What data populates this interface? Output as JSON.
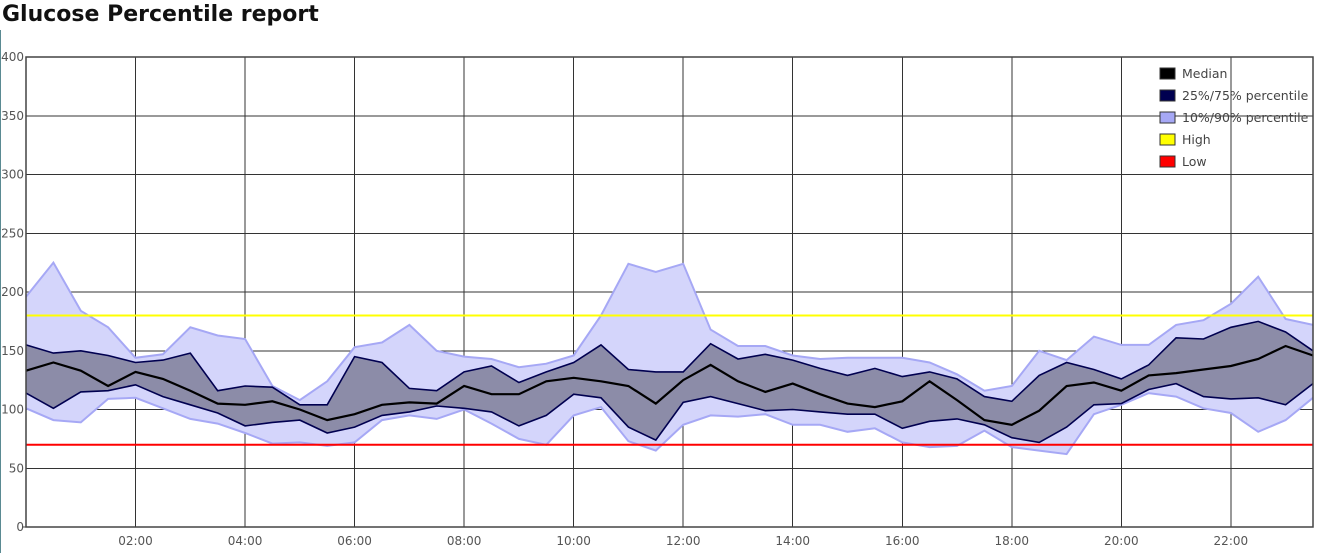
{
  "page": {
    "title": "Glucose Percentile report"
  },
  "chart_data": {
    "type": "area",
    "xlim": [
      0,
      23.5
    ],
    "ylim": [
      0,
      400
    ],
    "yticks": [
      0,
      50,
      100,
      150,
      200,
      250,
      300,
      350,
      400
    ],
    "xticks": [
      2,
      4,
      6,
      8,
      10,
      12,
      14,
      16,
      18,
      20,
      22
    ],
    "xtick_labels": [
      "02:00",
      "04:00",
      "06:00",
      "08:00",
      "10:00",
      "12:00",
      "14:00",
      "16:00",
      "18:00",
      "20:00",
      "22:00"
    ],
    "grid": true,
    "legend_position": "top-right",
    "x": [
      0,
      0.5,
      1,
      1.5,
      2,
      2.5,
      3,
      3.5,
      4,
      4.5,
      5,
      5.5,
      6,
      6.5,
      7,
      7.5,
      8,
      8.5,
      9,
      9.5,
      10,
      10.5,
      11,
      11.5,
      12,
      12.5,
      13,
      13.5,
      14,
      14.5,
      15,
      15.5,
      16,
      16.5,
      17,
      17.5,
      18,
      18.5,
      19,
      19.5,
      20,
      20.5,
      21,
      21.5,
      22,
      22.5,
      23,
      23.5
    ],
    "series": [
      {
        "name": "Median",
        "color": "#000000",
        "values": [
          133,
          140,
          133,
          120,
          132,
          126,
          116,
          105,
          104,
          107,
          100,
          91,
          96,
          104,
          106,
          105,
          120,
          113,
          113,
          124,
          127,
          124,
          120,
          105,
          125,
          138,
          124,
          115,
          122,
          113,
          105,
          102,
          107,
          124,
          108,
          91,
          87,
          99,
          120,
          123,
          116,
          129,
          131,
          134,
          137,
          143,
          154,
          146
        ]
      },
      {
        "name": "25%/75% percentile",
        "color": "#000050",
        "upper": [
          155,
          148,
          150,
          146,
          140,
          142,
          148,
          116,
          120,
          119,
          104,
          104,
          145,
          140,
          118,
          116,
          132,
          137,
          123,
          132,
          140,
          155,
          134,
          132,
          132,
          156,
          143,
          147,
          142,
          135,
          129,
          135,
          128,
          132,
          126,
          111,
          107,
          129,
          140,
          134,
          126,
          138,
          161,
          160,
          170,
          175,
          166,
          150
        ],
        "lower": [
          114,
          101,
          115,
          116,
          121,
          111,
          104,
          97,
          86,
          89,
          91,
          80,
          85,
          95,
          98,
          103,
          101,
          98,
          86,
          95,
          113,
          110,
          85,
          74,
          106,
          111,
          105,
          99,
          100,
          98,
          96,
          96,
          84,
          90,
          92,
          87,
          76,
          72,
          85,
          104,
          105,
          117,
          122,
          111,
          109,
          110,
          104,
          122
        ]
      },
      {
        "name": "10%/90% percentile",
        "color": "#a6a8f5",
        "upper": [
          196,
          225,
          184,
          170,
          144,
          147,
          170,
          163,
          160,
          120,
          108,
          124,
          153,
          157,
          172,
          150,
          145,
          143,
          136,
          139,
          146,
          180,
          224,
          217,
          224,
          168,
          154,
          154,
          146,
          143,
          144,
          144,
          144,
          140,
          130,
          116,
          120,
          150,
          142,
          162,
          155,
          155,
          172,
          176,
          190,
          213,
          177,
          172
        ],
        "lower": [
          101,
          91,
          89,
          109,
          110,
          101,
          92,
          88,
          80,
          71,
          72,
          69,
          72,
          91,
          95,
          92,
          100,
          88,
          75,
          70,
          95,
          102,
          73,
          65,
          87,
          95,
          94,
          96,
          87,
          87,
          81,
          84,
          72,
          68,
          69,
          82,
          68,
          65,
          62,
          96,
          104,
          114,
          111,
          101,
          97,
          81,
          91,
          110
        ]
      },
      {
        "name": "High",
        "color": "#ffff00",
        "value": 180
      },
      {
        "name": "Low",
        "color": "#ff0000",
        "value": 70
      }
    ]
  }
}
